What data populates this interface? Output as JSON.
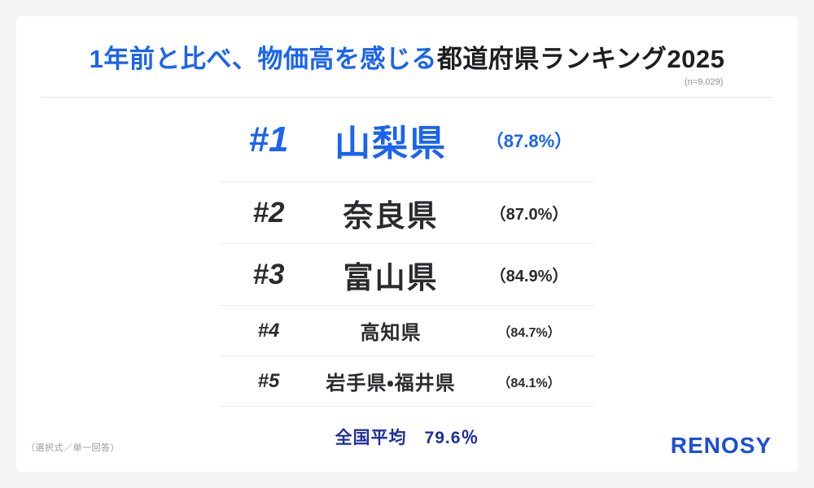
{
  "header": {
    "title_highlight": "1年前と比べ、物価高を感じる",
    "title_rest": "都道府県ランキング2025",
    "sample_size": "(n=9,029)"
  },
  "ranking": {
    "rows": [
      {
        "rank_label": "#1",
        "name": "山梨県",
        "pct_label": "（87.8%）"
      },
      {
        "rank_label": "#2",
        "name": "奈良県",
        "pct_label": "（87.0%）"
      },
      {
        "rank_label": "#3",
        "name": "富山県",
        "pct_label": "（84.9%）"
      },
      {
        "rank_label": "#4",
        "name": "高知県",
        "pct_label": "（84.7%）"
      },
      {
        "rank_label": "#5",
        "name": "岩手県・福井県",
        "pct_label": "（84.1%）"
      }
    ]
  },
  "footer": {
    "average_label": "全国平均　79.6％",
    "method_note": "（選択式／単一回答）",
    "logo_text": "RENOSY"
  },
  "colors": {
    "accent_blue": "#1a64f0",
    "average_navy": "#1d2f9b",
    "logo_blue": "#1d4ed8",
    "text_dark": "#2b2b2e",
    "note_gray": "#8f8f93",
    "background": "#f4f4f5"
  },
  "chart_data": {
    "type": "table",
    "title": "1年前と比べ、物価高を感じる都道府県ランキング2025",
    "sample_size": "n=9,029",
    "columns": [
      "rank",
      "prefecture",
      "share_feeling_price_rise_pct"
    ],
    "rows": [
      {
        "rank": 1,
        "prefecture": "山梨県",
        "value_pct": 87.8
      },
      {
        "rank": 2,
        "prefecture": "奈良県",
        "value_pct": 87.0
      },
      {
        "rank": 3,
        "prefecture": "富山県",
        "value_pct": 84.9
      },
      {
        "rank": 4,
        "prefecture": "高知県",
        "value_pct": 84.7
      },
      {
        "rank": 5,
        "prefecture": "岩手県・福井県",
        "value_pct": 84.1
      }
    ],
    "national_average_pct": 79.6,
    "survey_method": "選択式／単一回答"
  }
}
